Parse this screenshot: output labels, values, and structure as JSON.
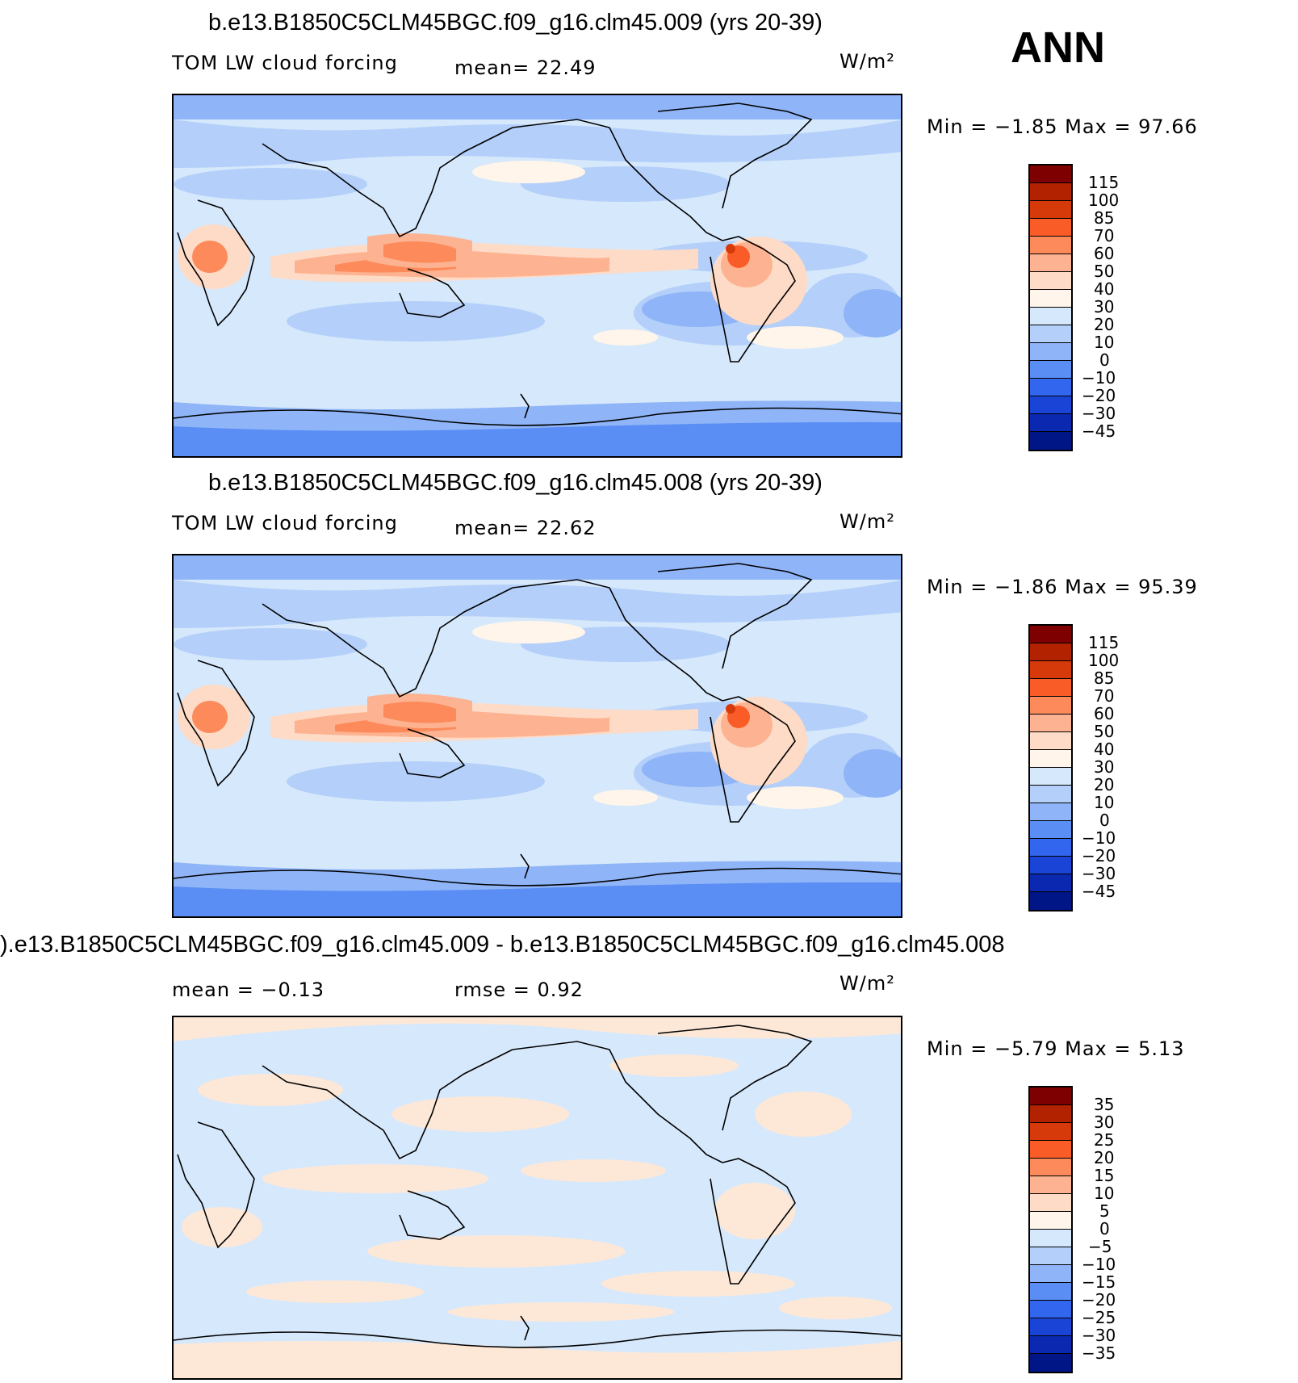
{
  "season": "ANN",
  "panels": [
    {
      "title": "b.e13.B1850C5CLM45BGC.f09_g16.clm45.009 (yrs 20-39)",
      "variable": "TOM LW cloud forcing",
      "stat1": "mean=   22.49",
      "units": "W/m²",
      "minmax": "Min  =   −1.85  Max  =    97.66",
      "colorbar_labels": [
        "115",
        "100",
        "85",
        "70",
        "60",
        "50",
        "40",
        "30",
        "20",
        "10",
        "0",
        "−10",
        "−20",
        "−30",
        "−45"
      ]
    },
    {
      "title": "b.e13.B1850C5CLM45BGC.f09_g16.clm45.008 (yrs 20-39)",
      "variable": "TOM LW cloud forcing",
      "stat1": "mean=   22.62",
      "units": "W/m²",
      "minmax": "Min  =   −1.86  Max  =    95.39",
      "colorbar_labels": [
        "115",
        "100",
        "85",
        "70",
        "60",
        "50",
        "40",
        "30",
        "20",
        "10",
        "0",
        "−10",
        "−20",
        "−30",
        "−45"
      ]
    },
    {
      "title": ").e13.B1850C5CLM45BGC.f09_g16.clm45.009 - b.e13.B1850C5CLM45BGC.f09_g16.clm45.008",
      "stat1": "mean  =    −0.13",
      "stat2": "rmse  =     0.92",
      "units": "W/m²",
      "minmax": "Min  =   −5.79  Max  =     5.13",
      "colorbar_labels": [
        "35",
        "30",
        "25",
        "20",
        "15",
        "10",
        "5",
        "0",
        "−5",
        "−10",
        "−15",
        "−20",
        "−25",
        "−30",
        "−35"
      ]
    }
  ],
  "colors": {
    "colorbar": [
      "#7f0000",
      "#b22200",
      "#d63a0a",
      "#fa5c28",
      "#fc8a5a",
      "#fdb391",
      "#fddbc7",
      "#fff5ea",
      "#d6e8fb",
      "#b4d0fa",
      "#8fb5f8",
      "#5a8ef4",
      "#3366ee",
      "#1a44d6",
      "#0a28b0",
      "#001586"
    ],
    "ocean_base": "#d6e8fb",
    "anomaly_base": "#d6e8fb",
    "anomaly_warm": "#fde8d8"
  }
}
